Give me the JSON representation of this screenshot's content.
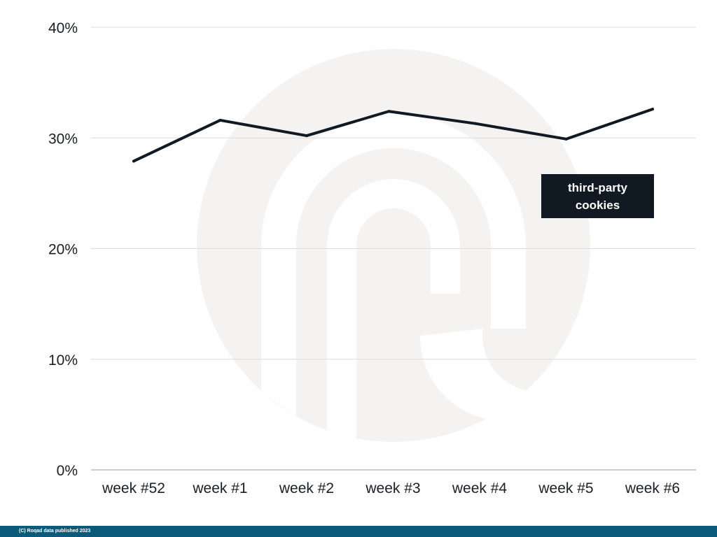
{
  "chart_data": {
    "type": "line",
    "categories": [
      "week #52",
      "week #1",
      "week #2",
      "week #3",
      "week #4",
      "week #5",
      "week #6"
    ],
    "x_points": [
      0,
      1,
      2,
      2.95,
      3.95,
      5,
      6
    ],
    "series": [
      {
        "name": "third-party cookies",
        "values": [
          27.9,
          31.6,
          30.2,
          32.4,
          31.3,
          29.9,
          32.6
        ],
        "color": "#111a22"
      }
    ],
    "yticks": [
      "0%",
      "10%",
      "20%",
      "30%",
      "40%"
    ],
    "ylim": [
      0,
      40
    ],
    "grid": true,
    "title": "",
    "xlabel": "",
    "ylabel": ""
  },
  "footer": {
    "text": "(C) Roqad data published 2023"
  },
  "colors": {
    "line": "#111a22",
    "gridline": "#dcdcdc",
    "watermark": "#f4f3f1",
    "footer_bg": "#0b5a7a"
  },
  "watermark": {
    "icon": "roqad-logo-watermark-icon"
  }
}
